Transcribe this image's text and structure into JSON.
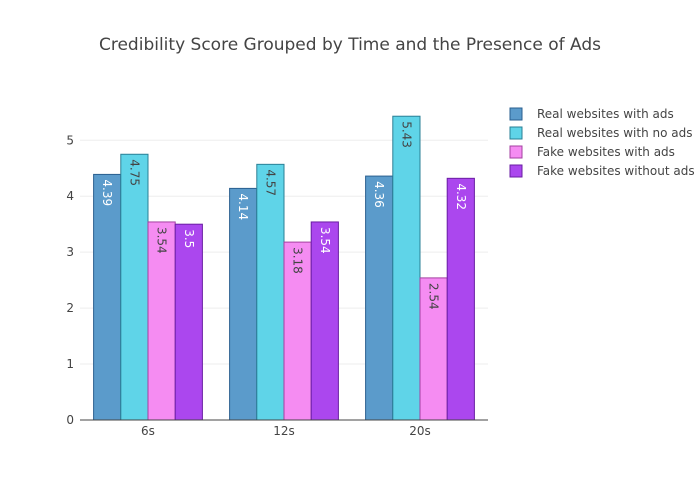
{
  "chart_data": {
    "type": "bar",
    "title": "Credibility Score Grouped by Time and the Presence of Ads",
    "xlabel": "",
    "ylabel": "",
    "categories": [
      "6s",
      "12s",
      "20s"
    ],
    "ylim": [
      0,
      5.72
    ],
    "yticks": [
      0,
      1,
      2,
      3,
      4,
      5
    ],
    "grid": true,
    "legend_position": "top-right",
    "series": [
      {
        "name": "Real websites with ads",
        "values": [
          4.39,
          4.14,
          4.36
        ],
        "labels": [
          "4.39",
          "4.14",
          "4.36"
        ],
        "color": "#5b9bcb",
        "stroke": "#2a5f8f",
        "label_color": "#ffffff"
      },
      {
        "name": "Real websites with no ads",
        "values": [
          4.75,
          4.57,
          5.43
        ],
        "labels": [
          "4.75",
          "4.57",
          "5.43"
        ],
        "color": "#5fd4e8",
        "stroke": "#2a7f95",
        "label_color": "#444444"
      },
      {
        "name": "Fake websites with ads",
        "values": [
          3.54,
          3.18,
          2.54
        ],
        "labels": [
          "3.54",
          "3.18",
          "2.54"
        ],
        "color": "#f58cf2",
        "stroke": "#a340a0",
        "label_color": "#444444"
      },
      {
        "name": "Fake websites without ads",
        "values": [
          3.5,
          3.54,
          4.32
        ],
        "labels": [
          "3.5",
          "3.54",
          "4.32"
        ],
        "color": "#ab47ee",
        "stroke": "#6a1ea3",
        "label_color": "#ffffff"
      }
    ]
  }
}
